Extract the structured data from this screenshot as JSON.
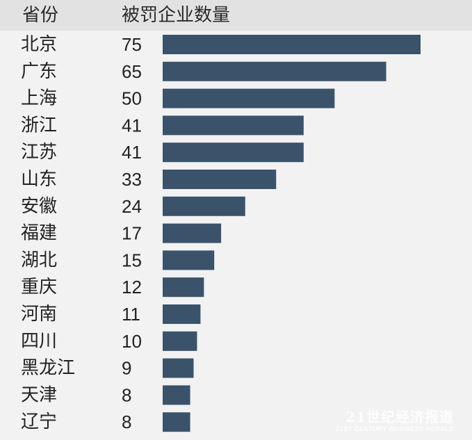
{
  "header": {
    "col_province": "省份",
    "col_count": "被罚企业数量"
  },
  "colors": {
    "bar": "#3a536b",
    "header_band": "#e2e2e2",
    "background": "#f2f2f2"
  },
  "chart_data": {
    "type": "bar",
    "orientation": "horizontal",
    "categories": [
      "北京",
      "广东",
      "上海",
      "浙江",
      "江苏",
      "山东",
      "安徽",
      "福建",
      "湖北",
      "重庆",
      "河南",
      "四川",
      "黑龙江",
      "天津",
      "辽宁"
    ],
    "values": [
      75,
      65,
      50,
      41,
      41,
      33,
      24,
      17,
      15,
      12,
      11,
      10,
      9,
      8,
      8
    ],
    "title": "",
    "xlabel": "被罚企业数量",
    "ylabel": "省份",
    "xlim": [
      0,
      75
    ],
    "grid": false,
    "legend": "none",
    "data_labels": true
  },
  "watermark": {
    "main": "21世纪经济报道",
    "sub": "21ST CENTURY BUSINESS HERALD"
  }
}
